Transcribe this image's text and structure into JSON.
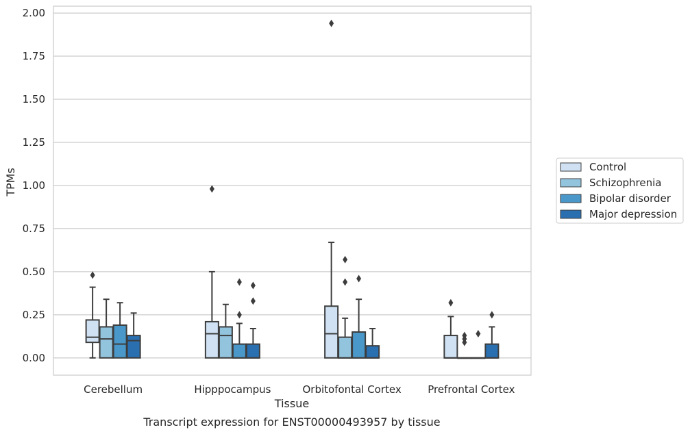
{
  "chart_data": {
    "type": "box",
    "title": "",
    "caption": "Transcript expression for ENST00000493957 by tissue",
    "xlabel": "Tissue",
    "ylabel": "TPMs",
    "ylim": [
      -0.1,
      2.04
    ],
    "yticks": [
      "0.00",
      "0.25",
      "0.50",
      "0.75",
      "1.00",
      "1.25",
      "1.50",
      "1.75",
      "2.00"
    ],
    "grid": "horizontal",
    "legend_position": "right",
    "categories": [
      "Cerebellum",
      "Hipppocampus",
      "Orbitofontal Cortex",
      "Prefrontal Cortex"
    ],
    "series": [
      {
        "name": "Control",
        "color": "#cfe1f2",
        "boxes": [
          {
            "q1": 0.09,
            "median": 0.12,
            "q3": 0.22,
            "whisker_low": 0.0,
            "whisker_high": 0.41,
            "outliers": [
              0.48
            ]
          },
          {
            "q1": 0.0,
            "median": 0.14,
            "q3": 0.21,
            "whisker_low": 0.0,
            "whisker_high": 0.5,
            "outliers": [
              0.98
            ]
          },
          {
            "q1": 0.0,
            "median": 0.14,
            "q3": 0.3,
            "whisker_low": 0.0,
            "whisker_high": 0.67,
            "outliers": [
              1.94
            ]
          },
          {
            "q1": 0.0,
            "median": 0.0,
            "q3": 0.13,
            "whisker_low": 0.0,
            "whisker_high": 0.24,
            "outliers": [
              0.32
            ]
          }
        ]
      },
      {
        "name": "Schizophrenia",
        "color": "#93c4de",
        "boxes": [
          {
            "q1": 0.0,
            "median": 0.11,
            "q3": 0.18,
            "whisker_low": 0.0,
            "whisker_high": 0.34,
            "outliers": []
          },
          {
            "q1": 0.0,
            "median": 0.13,
            "q3": 0.18,
            "whisker_low": 0.0,
            "whisker_high": 0.31,
            "outliers": []
          },
          {
            "q1": 0.0,
            "median": 0.0,
            "q3": 0.12,
            "whisker_low": 0.0,
            "whisker_high": 0.23,
            "outliers": [
              0.44,
              0.57
            ]
          },
          {
            "q1": 0.0,
            "median": 0.0,
            "q3": 0.0,
            "whisker_low": 0.0,
            "whisker_high": 0.0,
            "outliers": [
              0.09,
              0.11,
              0.13
            ]
          }
        ]
      },
      {
        "name": "Bipolar disorder",
        "color": "#4a98c9",
        "boxes": [
          {
            "q1": 0.0,
            "median": 0.08,
            "q3": 0.19,
            "whisker_low": 0.0,
            "whisker_high": 0.32,
            "outliers": []
          },
          {
            "q1": 0.0,
            "median": 0.0,
            "q3": 0.08,
            "whisker_low": 0.0,
            "whisker_high": 0.2,
            "outliers": [
              0.25,
              0.44
            ]
          },
          {
            "q1": 0.0,
            "median": 0.0,
            "q3": 0.15,
            "whisker_low": 0.0,
            "whisker_high": 0.34,
            "outliers": [
              0.46
            ]
          },
          {
            "q1": 0.0,
            "median": 0.0,
            "q3": 0.0,
            "whisker_low": 0.0,
            "whisker_high": 0.0,
            "outliers": [
              0.14
            ]
          }
        ]
      },
      {
        "name": "Major depression",
        "color": "#2a6fb0",
        "boxes": [
          {
            "q1": 0.0,
            "median": 0.1,
            "q3": 0.13,
            "whisker_low": 0.0,
            "whisker_high": 0.26,
            "outliers": []
          },
          {
            "q1": 0.0,
            "median": 0.0,
            "q3": 0.08,
            "whisker_low": 0.0,
            "whisker_high": 0.17,
            "outliers": [
              0.33,
              0.42
            ]
          },
          {
            "q1": 0.0,
            "median": 0.0,
            "q3": 0.07,
            "whisker_low": 0.0,
            "whisker_high": 0.17,
            "outliers": []
          },
          {
            "q1": 0.0,
            "median": 0.0,
            "q3": 0.08,
            "whisker_low": 0.0,
            "whisker_high": 0.18,
            "outliers": [
              0.25
            ]
          }
        ]
      }
    ]
  }
}
